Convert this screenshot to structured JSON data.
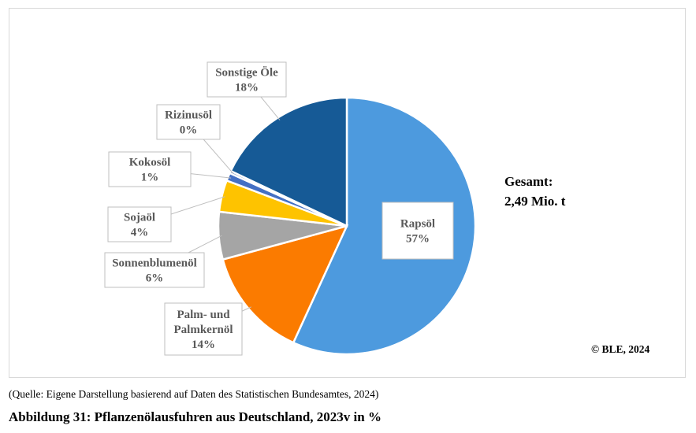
{
  "chart_data": {
    "type": "pie",
    "title": "",
    "slices": [
      {
        "name": "Rapsöl",
        "pct_label": "57%",
        "value": 57,
        "color": "#4d9ade"
      },
      {
        "name": "Palm- und Palmkernöl",
        "name_lines": [
          "Palm- und",
          "Palmkernöl"
        ],
        "pct_label": "14%",
        "value": 14,
        "color": "#fb7b00"
      },
      {
        "name": "Sonnenblumenöl",
        "pct_label": "6%",
        "value": 6,
        "color": "#a5a5a5"
      },
      {
        "name": "Sojaöl",
        "pct_label": "4%",
        "value": 4,
        "color": "#fec300"
      },
      {
        "name": "Kokosöl",
        "pct_label": "1%",
        "value": 1,
        "color": "#4470c4"
      },
      {
        "name": "Rizinusöl",
        "pct_label": "0%",
        "value": 0.3,
        "color": "#2f5597"
      },
      {
        "name": "Sonstige Öle",
        "pct_label": "18%",
        "value": 18,
        "color": "#165a96"
      }
    ],
    "total_label": "Gesamt:",
    "total_value": "2,49 Mio. t"
  },
  "copyright": "© BLE, 2024",
  "source": "(Quelle: Eigene Darstellung basierend auf Daten des Statistischen Bundesamtes, 2024)",
  "caption": "Abbildung 31: Pflanzenölausfuhren aus Deutschland, 2023v in %"
}
